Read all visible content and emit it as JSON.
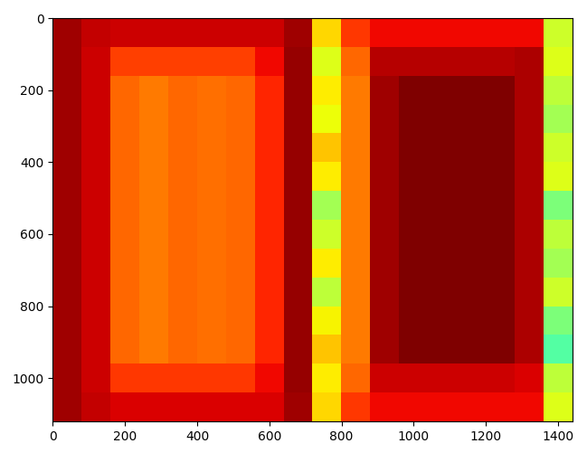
{
  "chart_data": {
    "type": "heatmap",
    "color": "jet",
    "zlim": [
      0,
      1
    ],
    "xlim": [
      0,
      1440
    ],
    "ylim": [
      1120,
      0
    ],
    "xticks": [
      0,
      200,
      400,
      600,
      800,
      1000,
      1200,
      1400
    ],
    "yticks": [
      0,
      200,
      400,
      600,
      800,
      1000
    ],
    "cells": [
      [
        0.97,
        0.94,
        0.93,
        0.93,
        0.93,
        0.93,
        0.93,
        0.93,
        0.97,
        0.68,
        0.85,
        0.9,
        0.9,
        0.9,
        0.9,
        0.9,
        0.9,
        0.6
      ],
      [
        0.97,
        0.93,
        0.84,
        0.84,
        0.84,
        0.84,
        0.84,
        0.9,
        0.98,
        0.62,
        0.8,
        0.95,
        0.95,
        0.95,
        0.95,
        0.95,
        0.96,
        0.62
      ],
      [
        0.97,
        0.93,
        0.8,
        0.78,
        0.8,
        0.79,
        0.8,
        0.87,
        0.98,
        0.66,
        0.78,
        0.97,
        1.0,
        1.0,
        1.0,
        1.0,
        0.96,
        0.58
      ],
      [
        0.97,
        0.93,
        0.8,
        0.78,
        0.8,
        0.79,
        0.8,
        0.87,
        0.98,
        0.64,
        0.78,
        0.97,
        1.0,
        1.0,
        1.0,
        1.0,
        0.96,
        0.55
      ],
      [
        0.97,
        0.93,
        0.8,
        0.78,
        0.8,
        0.79,
        0.8,
        0.87,
        0.98,
        0.7,
        0.78,
        0.97,
        1.0,
        1.0,
        1.0,
        1.0,
        0.96,
        0.6
      ],
      [
        0.97,
        0.93,
        0.8,
        0.78,
        0.8,
        0.79,
        0.8,
        0.87,
        0.98,
        0.66,
        0.78,
        0.97,
        1.0,
        1.0,
        1.0,
        1.0,
        0.96,
        0.62
      ],
      [
        0.97,
        0.93,
        0.8,
        0.78,
        0.8,
        0.79,
        0.8,
        0.87,
        0.98,
        0.55,
        0.78,
        0.97,
        1.0,
        1.0,
        1.0,
        1.0,
        0.96,
        0.5
      ],
      [
        0.97,
        0.93,
        0.8,
        0.78,
        0.8,
        0.79,
        0.8,
        0.87,
        0.98,
        0.6,
        0.78,
        0.97,
        1.0,
        1.0,
        1.0,
        1.0,
        0.96,
        0.58
      ],
      [
        0.97,
        0.93,
        0.8,
        0.78,
        0.8,
        0.79,
        0.8,
        0.87,
        0.98,
        0.66,
        0.78,
        0.97,
        1.0,
        1.0,
        1.0,
        1.0,
        0.96,
        0.55
      ],
      [
        0.97,
        0.93,
        0.8,
        0.78,
        0.8,
        0.79,
        0.8,
        0.87,
        0.98,
        0.58,
        0.78,
        0.97,
        1.0,
        1.0,
        1.0,
        1.0,
        0.96,
        0.6
      ],
      [
        0.97,
        0.93,
        0.8,
        0.78,
        0.8,
        0.79,
        0.8,
        0.87,
        0.98,
        0.65,
        0.78,
        0.97,
        1.0,
        1.0,
        1.0,
        1.0,
        0.96,
        0.5
      ],
      [
        0.97,
        0.93,
        0.8,
        0.78,
        0.8,
        0.79,
        0.8,
        0.87,
        0.98,
        0.7,
        0.78,
        0.97,
        1.0,
        1.0,
        1.0,
        1.0,
        0.96,
        0.45
      ],
      [
        0.97,
        0.93,
        0.85,
        0.85,
        0.85,
        0.85,
        0.85,
        0.9,
        0.98,
        0.66,
        0.8,
        0.93,
        0.93,
        0.93,
        0.93,
        0.93,
        0.92,
        0.58
      ],
      [
        0.97,
        0.94,
        0.92,
        0.92,
        0.92,
        0.92,
        0.92,
        0.92,
        0.97,
        0.68,
        0.85,
        0.9,
        0.9,
        0.9,
        0.9,
        0.9,
        0.9,
        0.62
      ]
    ]
  }
}
